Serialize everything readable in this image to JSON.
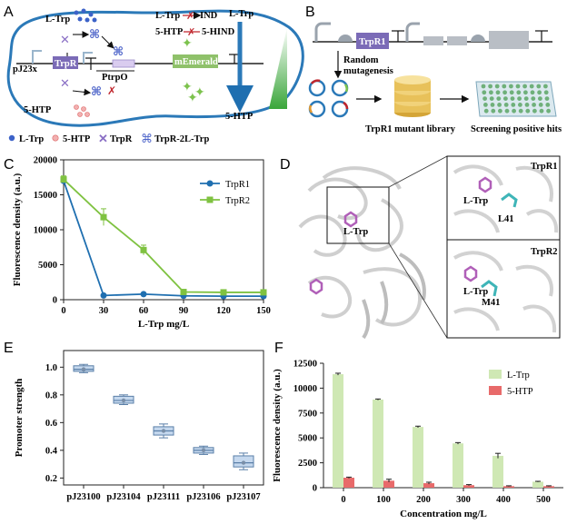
{
  "panel_labels": {
    "a": "A",
    "b": "B",
    "c": "C",
    "d": "D",
    "e": "E",
    "f": "F"
  },
  "panel_a": {
    "ltrp": "L-Trp",
    "ltrp_ind": "L-Trp",
    "ind": "IND",
    "htp_hind": "5-HTP",
    "hind": "5-HIND",
    "pj23x": "pJ23x",
    "trpr": "TrpR",
    "ptrpo": "PtrpO",
    "memerald": "mEmerald",
    "htp_cell": "5-HTP",
    "gradient_top": "L-Trp",
    "gradient_bottom": "5-HTP",
    "legend": [
      "L-Trp",
      "5-HTP",
      "TrpR",
      "TrpR-2L-Trp"
    ]
  },
  "panel_b": {
    "gene": "TrpR1",
    "mutagenesis_line1": "Random",
    "mutagenesis_line2": "mutagenesis",
    "library": "TrpR1 mutant library",
    "screening": "Screening positive hits"
  },
  "panel_d": {
    "main_label": "L-Trp",
    "top_title": "TrpR1",
    "top_ligand": "L-Trp",
    "top_residue": "L41",
    "bottom_title": "TrpR2",
    "bottom_ligand": "L-Trp",
    "bottom_residue": "M41"
  },
  "chart_data": [
    {
      "id": "C",
      "type": "line",
      "xlabel": "L-Trp mg/L",
      "ylabel": "Fluorescence density (a.u.)",
      "x": [
        0,
        30,
        60,
        90,
        120,
        150
      ],
      "xlim": [
        0,
        150
      ],
      "ylim": [
        0,
        20000
      ],
      "yticks": [
        0,
        5000,
        10000,
        15000,
        20000
      ],
      "legend_position": "top-right",
      "series": [
        {
          "name": "TrpR1",
          "color": "#1f6fb0",
          "marker": "circle",
          "values": [
            17000,
            600,
            800,
            550,
            500,
            500
          ],
          "errors": [
            400,
            60,
            60,
            50,
            50,
            50
          ]
        },
        {
          "name": "TrpR2",
          "color": "#7fc241",
          "marker": "square",
          "values": [
            17200,
            11800,
            7100,
            1100,
            1050,
            1050
          ],
          "errors": [
            500,
            1200,
            700,
            120,
            100,
            100
          ]
        }
      ]
    },
    {
      "id": "E",
      "type": "box",
      "ylabel": "Promoter strength",
      "categories": [
        "pJ23100",
        "pJ23104",
        "pJ23111",
        "pJ23106",
        "pJ23107"
      ],
      "ylim": [
        0.15,
        1.12
      ],
      "yticks": [
        0.2,
        0.4,
        0.6,
        0.8,
        1.0
      ],
      "ytick_labels": [
        "0.2",
        "0.4",
        "0.6",
        "0.8",
        "1.0"
      ],
      "boxes": [
        {
          "q1": 0.97,
          "median": 0.985,
          "q3": 1.01,
          "min": 0.96,
          "max": 1.02
        },
        {
          "q1": 0.74,
          "median": 0.76,
          "q3": 0.79,
          "min": 0.73,
          "max": 0.8
        },
        {
          "q1": 0.51,
          "median": 0.54,
          "q3": 0.57,
          "min": 0.49,
          "max": 0.59
        },
        {
          "q1": 0.38,
          "median": 0.4,
          "q3": 0.42,
          "min": 0.37,
          "max": 0.43
        },
        {
          "q1": 0.28,
          "median": 0.31,
          "q3": 0.36,
          "min": 0.26,
          "max": 0.38
        }
      ]
    },
    {
      "id": "F",
      "type": "bar",
      "xlabel": "Concentration mg/L",
      "ylabel": "Fluorescence density (a.u.)",
      "categories": [
        "0",
        "100",
        "200",
        "300",
        "400",
        "500"
      ],
      "ylim": [
        0,
        12500
      ],
      "yticks": [
        0,
        2500,
        5000,
        7500,
        10000,
        12500
      ],
      "legend_position": "top-right",
      "series": [
        {
          "name": "L-Trp",
          "color": "#cfe8b4",
          "values": [
            11400,
            8850,
            6100,
            4450,
            3200,
            600
          ],
          "errors": [
            100,
            60,
            80,
            80,
            250,
            40
          ]
        },
        {
          "name": "5-HTP",
          "color": "#e86a6a",
          "values": [
            1000,
            700,
            450,
            250,
            150,
            150
          ],
          "errors": [
            60,
            150,
            100,
            60,
            40,
            40
          ]
        }
      ]
    }
  ]
}
